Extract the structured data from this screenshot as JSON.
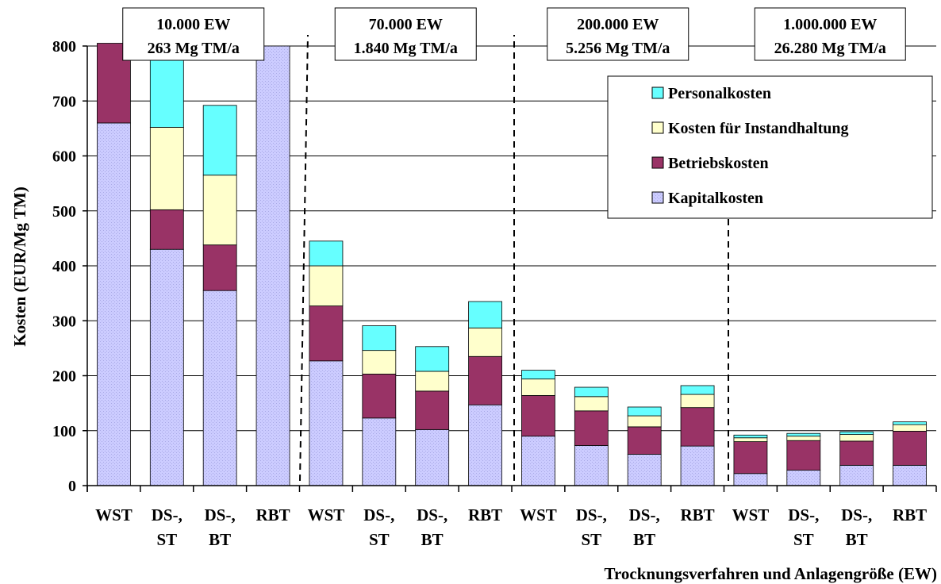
{
  "chart_data": {
    "type": "bar",
    "stacked": true,
    "title": "",
    "xlabel": "Trocknungsverfahren und Anlagengröße (EW)",
    "ylabel": "Kosten (EUR/Mg TM)",
    "ylim": [
      0,
      800
    ],
    "yticks": [
      0,
      100,
      200,
      300,
      400,
      500,
      600,
      700,
      800
    ],
    "grid": true,
    "legend_position": "top-right",
    "categories": [
      [
        "WST"
      ],
      [
        "DS-,",
        "ST"
      ],
      [
        "DS-,",
        "BT"
      ],
      [
        "RBT"
      ],
      [
        "WST"
      ],
      [
        "DS-,",
        "ST"
      ],
      [
        "DS-,",
        "BT"
      ],
      [
        "RBT"
      ],
      [
        "WST"
      ],
      [
        "DS-,",
        "ST"
      ],
      [
        "DS-,",
        "BT"
      ],
      [
        "RBT"
      ],
      [
        "WST"
      ],
      [
        "DS-,",
        "ST"
      ],
      [
        "DS-,",
        "BT"
      ],
      [
        "RBT"
      ]
    ],
    "groups": [
      {
        "line1": "10.000 EW",
        "line2": "263 Mg TM/a"
      },
      {
        "line1": "70.000 EW",
        "line2": "1.840 Mg TM/a"
      },
      {
        "line1": "200.000 EW",
        "line2": "5.256 Mg TM/a"
      },
      {
        "line1": "1.000.000 EW",
        "line2": "26.280 Mg TM/a"
      }
    ],
    "series": [
      {
        "name": "Kapitalkosten",
        "color": "#ccccff",
        "values": [
          660,
          430,
          355,
          800,
          227,
          123,
          102,
          147,
          90,
          73,
          57,
          72,
          22,
          28,
          37,
          37
        ]
      },
      {
        "name": "Betriebskosten",
        "color": "#993366",
        "values": [
          145,
          72,
          83,
          0,
          100,
          80,
          70,
          88,
          74,
          63,
          50,
          70,
          58,
          54,
          44,
          62
        ]
      },
      {
        "name": "Kosten für Instandhaltung",
        "color": "#ffffcc",
        "values": [
          0,
          150,
          127,
          0,
          73,
          43,
          36,
          52,
          30,
          26,
          20,
          24,
          7,
          8,
          12,
          12
        ]
      },
      {
        "name": "Personalkosten",
        "color": "#66ffff",
        "values": [
          0,
          125,
          127,
          0,
          45,
          45,
          45,
          48,
          16,
          17,
          16,
          16,
          5,
          5,
          5,
          5
        ]
      }
    ],
    "legend_order": [
      "Personalkosten",
      "Kosten für Instandhaltung",
      "Betriebskosten",
      "Kapitalkosten"
    ]
  }
}
